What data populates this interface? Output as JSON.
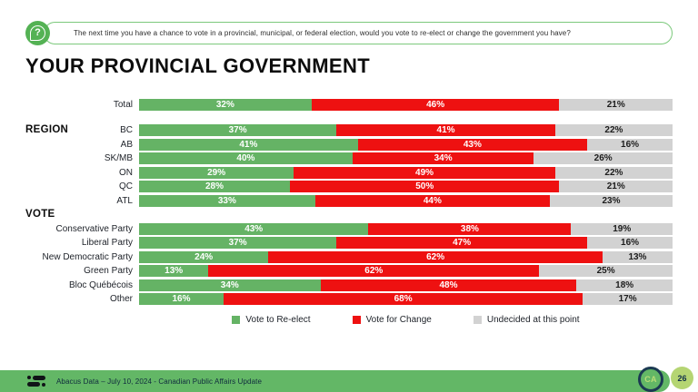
{
  "question": {
    "text": "The next time you have a chance to vote in a provincial, municipal, or federal election, would you vote to re-elect or change the government you have?",
    "icon": "question-bubble-icon",
    "glyph": "?"
  },
  "title": "YOUR PROVINCIAL GOVERNMENT",
  "chart_data": {
    "type": "bar",
    "orientation": "horizontal-stacked",
    "value_suffix": "%",
    "series_names": [
      "Vote to Re-elect",
      "Vote for Change",
      "Undecided at this point"
    ],
    "colors": {
      "reelect": "#65b365",
      "change": "#ee1111",
      "undecided": "#d2d2d2"
    },
    "legend": [
      {
        "label": "Vote to Re-elect",
        "color": "#65b365"
      },
      {
        "label": "Vote for Change",
        "color": "#ee1111"
      },
      {
        "label": "Undecided at this point",
        "color": "#d2d2d2"
      }
    ],
    "legend_position": "bottom-center",
    "groups": [
      {
        "header": "",
        "header_inline": false,
        "gap_after": true,
        "rows": [
          {
            "label": "Total",
            "values": [
              32,
              46,
              21
            ]
          }
        ]
      },
      {
        "header": "REGION",
        "header_inline": true,
        "gap_after": false,
        "rows": [
          {
            "label": "BC",
            "values": [
              37,
              41,
              22
            ]
          },
          {
            "label": "AB",
            "values": [
              41,
              43,
              16
            ]
          },
          {
            "label": "SK/MB",
            "values": [
              40,
              34,
              26
            ]
          },
          {
            "label": "ON",
            "values": [
              29,
              49,
              22
            ]
          },
          {
            "label": "QC",
            "values": [
              28,
              50,
              21
            ]
          },
          {
            "label": "ATL",
            "values": [
              33,
              44,
              23
            ]
          }
        ]
      },
      {
        "header": "VOTE",
        "header_inline": false,
        "gap_after": false,
        "rows": [
          {
            "label": "Conservative Party",
            "values": [
              43,
              38,
              19
            ]
          },
          {
            "label": "Liberal Party",
            "values": [
              37,
              47,
              16
            ]
          },
          {
            "label": "New Democratic Party",
            "values": [
              24,
              62,
              13
            ]
          },
          {
            "label": "Green Party",
            "values": [
              13,
              62,
              25
            ]
          },
          {
            "label": "Bloc Québécois",
            "values": [
              34,
              48,
              18
            ]
          },
          {
            "label": "Other",
            "values": [
              16,
              68,
              17
            ]
          }
        ]
      }
    ]
  },
  "footer": {
    "text": "Abacus Data – July 10, 2024 - Canadian Public Affairs Update",
    "logo": "abacus-logo-icon",
    "monogram": "CA",
    "page_number": "26",
    "bar_color": "#63b766"
  }
}
